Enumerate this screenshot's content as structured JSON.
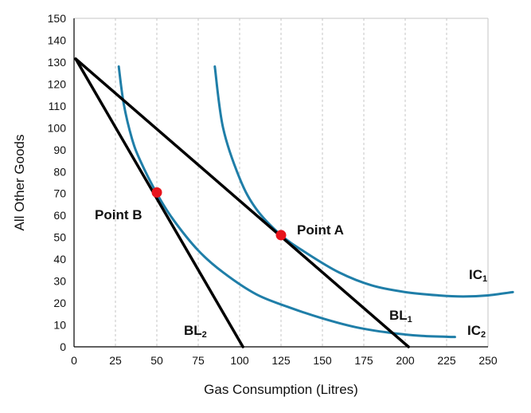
{
  "chart_data": {
    "type": "line",
    "title": "",
    "xlabel": "Gas Consumption (Litres)",
    "ylabel": "All Other Goods",
    "xlim": [
      0,
      250
    ],
    "ylim": [
      0,
      150
    ],
    "xticks": [
      0,
      25,
      50,
      75,
      100,
      125,
      150,
      175,
      200,
      225,
      250
    ],
    "yticks": [
      0,
      10,
      20,
      30,
      40,
      50,
      60,
      70,
      80,
      90,
      100,
      110,
      120,
      130,
      140,
      150
    ],
    "grid": {
      "x": "dashed-vertical",
      "y": false
    },
    "colors": {
      "budget_line": "#000000",
      "indifference_curve": "#1f7ea8",
      "point": "#e8141c",
      "grid": "#c6c6c6"
    },
    "budget_lines": [
      {
        "label": "BL",
        "subscript": "1",
        "points": [
          [
            1,
            131.5
          ],
          [
            202,
            0
          ]
        ]
      },
      {
        "label": "BL",
        "subscript": "2",
        "points": [
          [
            1,
            131.5
          ],
          [
            102,
            0
          ]
        ]
      }
    ],
    "indifference_curves": [
      {
        "label": "IC",
        "subscript": "1",
        "x": [
          85,
          90,
          100,
          110,
          125,
          140,
          160,
          180,
          200,
          220,
          235,
          250,
          265
        ],
        "y": [
          128,
          100,
          77,
          63,
          51,
          43,
          34,
          28,
          25,
          23.5,
          23,
          23.5,
          25
        ]
      },
      {
        "label": "IC",
        "subscript": "2",
        "x": [
          27,
          30,
          35,
          40,
          50,
          60,
          75,
          90,
          110,
          130,
          150,
          170,
          190,
          210,
          230
        ],
        "y": [
          128,
          111,
          95,
          85,
          70,
          58,
          44,
          34,
          24,
          18,
          13,
          9,
          6.5,
          5,
          4.5
        ]
      }
    ],
    "points": [
      {
        "label": "Point A",
        "x": 125,
        "y": 51
      },
      {
        "label": "Point B",
        "x": 50,
        "y": 70.5
      }
    ],
    "annotations": {
      "ic1_label": "IC",
      "ic1_sub": "1",
      "ic2_label": "IC",
      "ic2_sub": "2",
      "bl1_label": "BL",
      "bl1_sub": "1",
      "bl2_label": "BL",
      "bl2_sub": "2",
      "point_a_label": "Point A",
      "point_b_label": "Point B"
    }
  }
}
